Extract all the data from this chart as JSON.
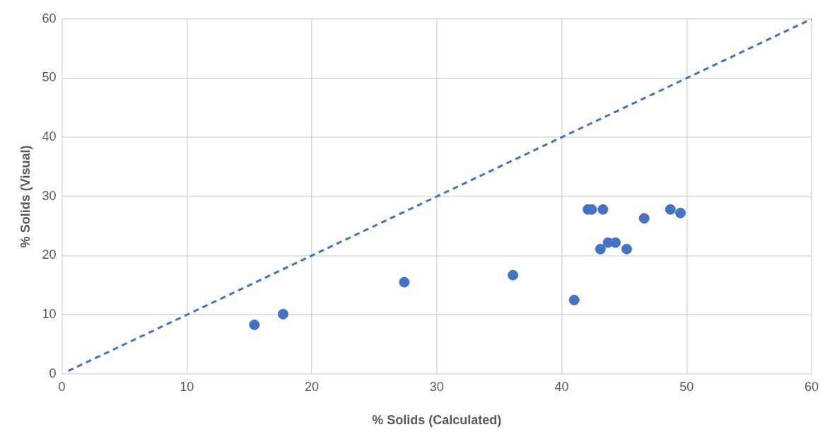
{
  "chart_data": {
    "type": "scatter",
    "xlabel": "% Solids (Calculated)",
    "ylabel": "% Solids (Visual)",
    "xlim": [
      0,
      60
    ],
    "ylim": [
      0,
      60
    ],
    "xticks": [
      0,
      10,
      20,
      30,
      40,
      50,
      60
    ],
    "yticks": [
      0,
      10,
      20,
      30,
      40,
      50,
      60
    ],
    "grid": true,
    "legend": false,
    "marker": "circle",
    "series": [
      {
        "color": "#4472c4",
        "x": [
          15.4,
          17.7,
          27.4,
          36.1,
          41.0,
          42.1,
          42.4,
          43.3,
          43.1,
          43.7,
          44.3,
          45.2,
          46.6,
          48.7,
          49.5
        ],
        "values": [
          8.3,
          10.1,
          15.5,
          16.7,
          12.5,
          27.8,
          27.8,
          27.8,
          21.1,
          22.2,
          22.2,
          21.1,
          26.3,
          27.8,
          27.2
        ]
      },
      {
        "type": "line",
        "color": "#4472c4",
        "line_style": "dashed",
        "marker": "none",
        "x": [
          0.5,
          60
        ],
        "values": [
          0.5,
          60
        ]
      }
    ]
  }
}
